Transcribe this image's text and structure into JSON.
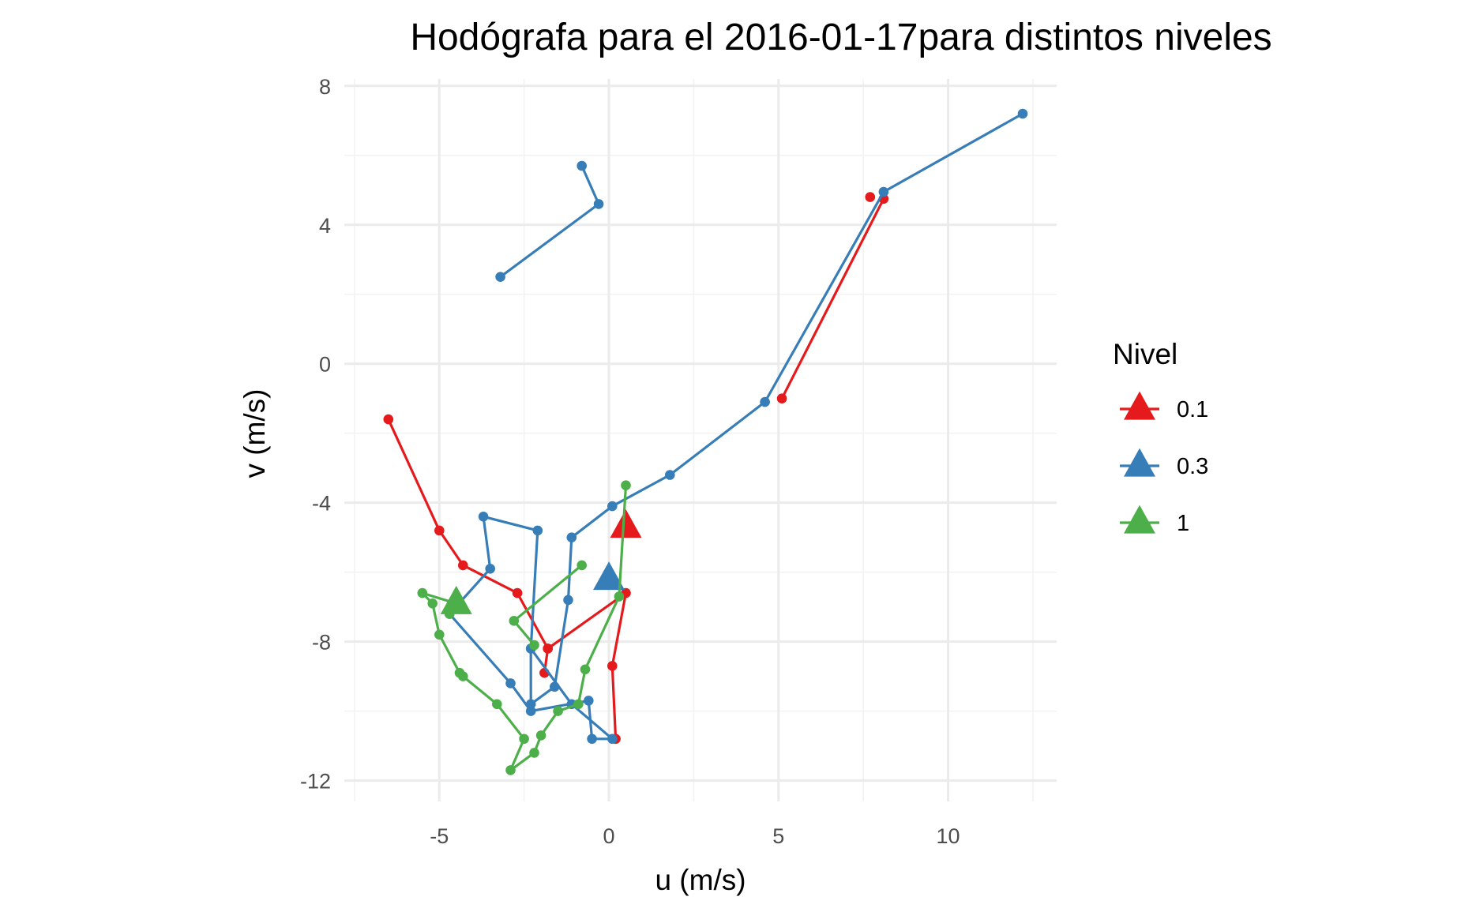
{
  "chart_data": {
    "type": "line",
    "title": "Hodógrafa para el 2016-01-17para distintos niveles",
    "xlabel": "u (m/s)",
    "ylabel": "v (m/s)",
    "xlim": [
      -7.8,
      13.2
    ],
    "ylim": [
      -12.6,
      8.2
    ],
    "x_ticks": [
      -5,
      0,
      5,
      10
    ],
    "y_ticks": [
      8,
      4,
      0,
      -4,
      -8,
      -12
    ],
    "x_tick_labels": [
      "-5",
      "0",
      "5",
      "10"
    ],
    "y_tick_labels": [
      "8",
      "4",
      "0",
      "-4",
      "-8",
      "-12"
    ],
    "grid": true,
    "legend": {
      "title": "Nivel",
      "position": "right",
      "entries": [
        "0.1",
        "0.3",
        "1"
      ]
    },
    "series": [
      {
        "name": "0.1",
        "color": "#e41a1c",
        "points": [
          [
            -1.9,
            -8.9
          ],
          [
            -1.8,
            -8.2
          ],
          [
            0.5,
            -6.6
          ],
          [
            0.1,
            -8.7
          ],
          [
            0.2,
            -10.8
          ],
          null,
          [
            7.7,
            4.8
          ],
          null,
          [
            8.1,
            4.75
          ],
          [
            5.1,
            -1.0
          ],
          null,
          [
            -6.5,
            -1.6
          ],
          [
            -5.0,
            -4.8
          ],
          [
            -4.3,
            -5.8
          ],
          [
            -2.7,
            -6.6
          ],
          [
            -1.8,
            -8.2
          ]
        ],
        "start_marker": [
          0.5,
          -4.7
        ]
      },
      {
        "name": "0.3",
        "color": "#377eb8",
        "points": [
          [
            12.2,
            7.2
          ],
          [
            8.1,
            4.95
          ],
          [
            4.6,
            -1.1
          ],
          [
            1.8,
            -3.2
          ],
          [
            0.1,
            -4.1
          ],
          [
            -1.1,
            -5.0
          ],
          [
            -1.2,
            -6.8
          ],
          [
            -1.6,
            -9.3
          ],
          [
            -2.3,
            -9.8
          ],
          [
            -2.3,
            -8.2
          ],
          [
            -2.1,
            -4.8
          ],
          [
            -3.7,
            -4.4
          ],
          [
            -3.5,
            -5.9
          ],
          [
            -4.7,
            -7.2
          ],
          [
            -2.9,
            -9.2
          ],
          [
            -2.3,
            -10.0
          ],
          [
            -0.6,
            -9.7
          ],
          [
            -0.5,
            -10.8
          ],
          [
            0.1,
            -10.8
          ],
          [
            -1.1,
            -9.8
          ],
          [
            -2.3,
            -8.2
          ],
          null,
          [
            -0.8,
            5.7
          ],
          [
            -0.3,
            4.6
          ],
          [
            -3.2,
            2.5
          ]
        ],
        "start_marker": [
          0.0,
          -6.2
        ]
      },
      {
        "name": "1",
        "color": "#4daf4a",
        "points": [
          [
            0.5,
            -3.5
          ],
          [
            0.3,
            -6.7
          ],
          [
            -0.7,
            -8.8
          ],
          [
            -0.9,
            -9.8
          ],
          [
            -1.5,
            -10.0
          ],
          [
            -2.0,
            -10.7
          ],
          [
            -2.2,
            -11.2
          ],
          [
            -2.9,
            -11.7
          ],
          [
            -2.5,
            -10.8
          ],
          [
            -3.3,
            -9.8
          ],
          [
            -4.3,
            -9.0
          ],
          [
            -4.4,
            -8.9
          ],
          [
            -5.0,
            -7.8
          ],
          [
            -5.2,
            -6.9
          ],
          [
            -5.5,
            -6.6
          ],
          [
            -4.5,
            -6.9
          ],
          [
            -4.7,
            -7.2
          ],
          null,
          [
            -0.8,
            -5.8
          ],
          [
            -2.8,
            -7.4
          ],
          [
            -2.2,
            -8.1
          ]
        ],
        "start_marker": [
          -4.5,
          -6.9
        ]
      }
    ]
  }
}
